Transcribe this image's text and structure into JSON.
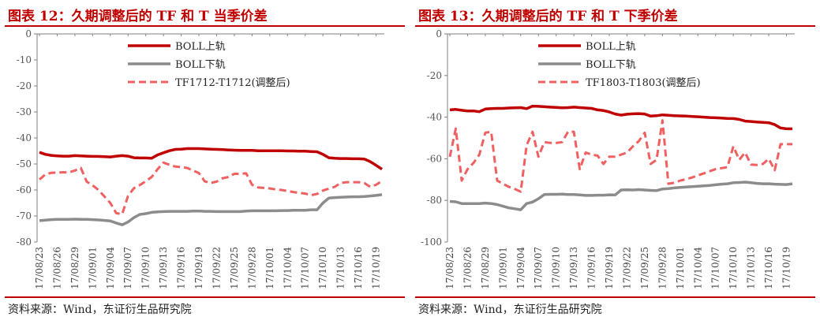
{
  "colors": {
    "upper": "#c00000",
    "lower": "#8c8c8c",
    "spread": "#f06060",
    "title": "#c00000"
  },
  "chart_data": [
    {
      "type": "line",
      "title": "图表 12：久期调整后的 TF 和 T 当季价差",
      "source": "资料来源：Wind，东证衍生品研究院",
      "xlabel": "",
      "ylabel": "",
      "ylim": [
        -80,
        0
      ],
      "yticks": [
        0,
        -10,
        -20,
        -30,
        -40,
        -50,
        -60,
        -70,
        -80
      ],
      "grid": false,
      "legend_position": "top-center",
      "x": [
        "17/08/23",
        "17/08/24",
        "17/08/25",
        "17/08/26",
        "17/08/27",
        "17/08/28",
        "17/08/29",
        "17/08/30",
        "17/08/31",
        "17/09/01",
        "17/09/02",
        "17/09/03",
        "17/09/04",
        "17/09/05",
        "17/09/06",
        "17/09/07",
        "17/09/08",
        "17/09/09",
        "17/09/10",
        "17/09/11",
        "17/09/12",
        "17/09/13",
        "17/09/14",
        "17/09/15",
        "17/09/16",
        "17/09/17",
        "17/09/18",
        "17/09/19",
        "17/09/20",
        "17/09/21",
        "17/09/22",
        "17/09/23",
        "17/09/24",
        "17/09/25",
        "17/09/26",
        "17/09/27",
        "17/09/28",
        "17/09/29",
        "17/09/30",
        "17/10/01",
        "17/10/02",
        "17/10/03",
        "17/10/04",
        "17/10/05",
        "17/10/06",
        "17/10/07",
        "17/10/08",
        "17/10/09",
        "17/10/10",
        "17/10/11",
        "17/10/12",
        "17/10/13",
        "17/10/14",
        "17/10/15",
        "17/10/16",
        "17/10/17",
        "17/10/18",
        "17/10/19",
        "17/10/20"
      ],
      "x_tick_labels": [
        "17/08/23",
        "17/08/26",
        "17/08/29",
        "17/09/01",
        "17/09/04",
        "17/09/07",
        "17/09/10",
        "17/09/13",
        "17/09/16",
        "17/09/19",
        "17/09/22",
        "17/09/25",
        "17/09/28",
        "17/10/01",
        "17/10/04",
        "17/10/07",
        "17/10/10",
        "17/10/13",
        "17/10/16",
        "17/10/19"
      ],
      "series": [
        {
          "name": "BOLL上轨",
          "style": "solid",
          "color": "#c00000",
          "values": [
            -45.5,
            -46.3,
            -46.7,
            -46.9,
            -47.0,
            -47.0,
            -46.8,
            -46.9,
            -47.0,
            -47.1,
            -47.1,
            -47.2,
            -47.3,
            -47.0,
            -46.8,
            -47.0,
            -47.6,
            -47.7,
            -47.7,
            -47.8,
            -46.5,
            -45.7,
            -44.9,
            -44.4,
            -44.3,
            -44.1,
            -44.1,
            -44.1,
            -44.2,
            -44.3,
            -44.4,
            -44.5,
            -44.6,
            -44.7,
            -44.8,
            -44.8,
            -44.8,
            -44.9,
            -44.9,
            -44.9,
            -44.9,
            -44.9,
            -45.0,
            -45.0,
            -45.1,
            -45.1,
            -45.2,
            -45.3,
            -46.3,
            -47.6,
            -47.8,
            -47.9,
            -47.9,
            -48.0,
            -48.0,
            -48.1,
            -49.1,
            -50.5,
            -52.0
          ]
        },
        {
          "name": "BOLL下轨",
          "style": "solid",
          "color": "#8c8c8c",
          "values": [
            -71.8,
            -71.6,
            -71.4,
            -71.3,
            -71.3,
            -71.3,
            -71.2,
            -71.3,
            -71.3,
            -71.4,
            -71.5,
            -71.7,
            -71.9,
            -72.7,
            -73.4,
            -72.3,
            -70.6,
            -69.4,
            -69.1,
            -68.6,
            -68.4,
            -68.3,
            -68.2,
            -68.2,
            -68.2,
            -68.2,
            -68.1,
            -68.1,
            -68.2,
            -68.2,
            -68.3,
            -68.3,
            -68.3,
            -68.3,
            -68.3,
            -68.1,
            -68.0,
            -68.0,
            -68.0,
            -68.0,
            -68.0,
            -67.9,
            -67.9,
            -67.8,
            -67.8,
            -67.8,
            -67.6,
            -67.6,
            -65.0,
            -63.1,
            -62.9,
            -62.8,
            -62.7,
            -62.6,
            -62.6,
            -62.5,
            -62.3,
            -62.1,
            -61.8
          ]
        },
        {
          "name": "TF1712-T1712(调整后)",
          "style": "dashed",
          "color": "#f06060",
          "values": [
            -56.0,
            -54.0,
            -53.4,
            -53.3,
            -53.2,
            -53.2,
            -52.5,
            -51.5,
            -56.8,
            -58.2,
            -60.0,
            -62.5,
            -65.0,
            -68.9,
            -69.3,
            -62.3,
            -59.3,
            -58.1,
            -56.6,
            -55.0,
            -52.0,
            -49.5,
            -50.3,
            -51.0,
            -51.2,
            -51.5,
            -52.5,
            -53.5,
            -56.7,
            -57.3,
            -56.8,
            -55.5,
            -55.0,
            -53.8,
            -53.8,
            -53.6,
            -58.0,
            -59.0,
            -59.2,
            -59.4,
            -59.8,
            -60.0,
            -60.4,
            -60.8,
            -61.1,
            -61.4,
            -62.0,
            -61.5,
            -60.2,
            -59.5,
            -58.8,
            -57.3,
            -57.0,
            -57.0,
            -57.0,
            -57.3,
            -58.8,
            -58.0,
            -56.5
          ]
        }
      ]
    },
    {
      "type": "line",
      "title": "图表 13：久期调整后的 TF 和 T 下季价差",
      "source": "资料来源：Wind，东证衍生品研究院",
      "xlabel": "",
      "ylabel": "",
      "ylim": [
        -100,
        0
      ],
      "yticks": [
        0,
        -20,
        -40,
        -60,
        -80,
        -100
      ],
      "grid": false,
      "legend_position": "top-center",
      "x": [
        "17/08/23",
        "17/08/24",
        "17/08/25",
        "17/08/26",
        "17/08/27",
        "17/08/28",
        "17/08/29",
        "17/08/30",
        "17/08/31",
        "17/09/01",
        "17/09/02",
        "17/09/03",
        "17/09/04",
        "17/09/05",
        "17/09/06",
        "17/09/07",
        "17/09/08",
        "17/09/09",
        "17/09/10",
        "17/09/11",
        "17/09/12",
        "17/09/13",
        "17/09/14",
        "17/09/15",
        "17/09/16",
        "17/09/17",
        "17/09/18",
        "17/09/19",
        "17/09/20",
        "17/09/21",
        "17/09/22",
        "17/09/23",
        "17/09/24",
        "17/09/25",
        "17/09/26",
        "17/09/27",
        "17/09/28",
        "17/09/29",
        "17/09/30",
        "17/10/01",
        "17/10/02",
        "17/10/03",
        "17/10/04",
        "17/10/05",
        "17/10/06",
        "17/10/07",
        "17/10/08",
        "17/10/09",
        "17/10/10",
        "17/10/11",
        "17/10/12",
        "17/10/13",
        "17/10/14",
        "17/10/15",
        "17/10/16",
        "17/10/17",
        "17/10/18",
        "17/10/19",
        "17/10/20"
      ],
      "x_tick_labels": [
        "17/08/23",
        "17/08/26",
        "17/08/29",
        "17/09/01",
        "17/09/04",
        "17/09/07",
        "17/09/10",
        "17/09/13",
        "17/09/16",
        "17/09/19",
        "17/09/22",
        "17/09/25",
        "17/09/28",
        "17/10/01",
        "17/10/04",
        "17/10/07",
        "17/10/10",
        "17/10/13",
        "17/10/16",
        "17/10/19"
      ],
      "series": [
        {
          "name": "BOLL上轨",
          "style": "solid",
          "color": "#c00000",
          "values": [
            -36.5,
            -36.3,
            -36.7,
            -37.0,
            -37.0,
            -37.4,
            -36.1,
            -35.9,
            -35.8,
            -35.8,
            -35.6,
            -35.5,
            -35.4,
            -35.9,
            -34.7,
            -34.8,
            -35.0,
            -35.2,
            -35.3,
            -35.5,
            -35.4,
            -35.2,
            -35.4,
            -35.6,
            -35.8,
            -36.5,
            -36.8,
            -37.5,
            -38.5,
            -39.0,
            -38.6,
            -38.4,
            -38.3,
            -38.5,
            -39.5,
            -39.3,
            -38.9,
            -39.1,
            -39.3,
            -39.4,
            -39.5,
            -39.7,
            -39.8,
            -40.0,
            -40.2,
            -40.3,
            -40.4,
            -40.6,
            -40.7,
            -41.1,
            -41.9,
            -42.1,
            -42.3,
            -42.5,
            -42.7,
            -43.6,
            -45.2,
            -45.6,
            -45.6
          ]
        },
        {
          "name": "BOLL下轨",
          "style": "solid",
          "color": "#8c8c8c",
          "values": [
            -80.5,
            -80.7,
            -81.5,
            -81.5,
            -81.5,
            -81.5,
            -81.3,
            -81.5,
            -82.0,
            -82.8,
            -83.6,
            -84.0,
            -84.5,
            -81.5,
            -80.8,
            -79.2,
            -77.2,
            -77.1,
            -77.1,
            -77.0,
            -77.2,
            -77.2,
            -77.4,
            -77.6,
            -77.6,
            -77.5,
            -77.5,
            -77.3,
            -77.4,
            -75.0,
            -74.9,
            -75.0,
            -74.8,
            -75.0,
            -75.2,
            -75.3,
            -74.5,
            -74.3,
            -74.0,
            -73.8,
            -73.6,
            -73.4,
            -73.2,
            -73.0,
            -72.8,
            -72.5,
            -72.2,
            -72.0,
            -71.5,
            -71.4,
            -71.2,
            -71.5,
            -71.8,
            -72.0,
            -72.0,
            -72.2,
            -72.3,
            -72.4,
            -72.0
          ]
        },
        {
          "name": "TF1803-T1803(调整后)",
          "style": "dashed",
          "color": "#f06060",
          "values": [
            -59.0,
            -45.5,
            -70.5,
            -65.0,
            -62.0,
            -58.0,
            -47.5,
            -47.0,
            -70.5,
            -72.0,
            -73.5,
            -74.5,
            -75.8,
            -53.5,
            -47.0,
            -59.0,
            -52.0,
            -52.4,
            -52.4,
            -52.0,
            -47.0,
            -47.0,
            -65.0,
            -57.0,
            -58.0,
            -58.5,
            -62.5,
            -59.0,
            -59.0,
            -58.0,
            -57.0,
            -54.0,
            -51.5,
            -47.5,
            -62.5,
            -60.5,
            -41.5,
            -72.0,
            -71.5,
            -70.5,
            -69.8,
            -69.0,
            -68.0,
            -67.0,
            -66.0,
            -65.0,
            -64.5,
            -64.0,
            -54.0,
            -60.5,
            -57.0,
            -62.8,
            -63.0,
            -62.5,
            -60.0,
            -65.5,
            -53.0,
            -53.0,
            -53.0
          ]
        }
      ]
    }
  ]
}
